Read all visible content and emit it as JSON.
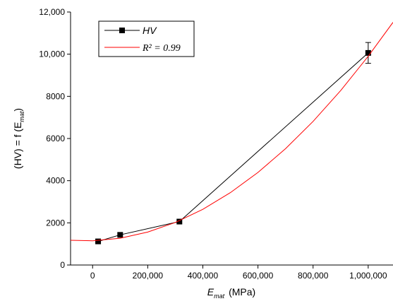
{
  "chart_data": {
    "type": "line",
    "y_label_parts": [
      "(HV) = f (E",
      "mat",
      ")"
    ],
    "x_label_parts": [
      "E",
      "mat",
      "(MPa)"
    ],
    "xlim": [
      -80000,
      1090000
    ],
    "ylim": [
      0,
      12000
    ],
    "xticks": [
      0,
      {
        "value": 200000,
        "label": "200,000"
      },
      {
        "value": 400000,
        "label": "400,000"
      },
      {
        "value": 600000,
        "label": "600,000"
      },
      {
        "value": 800000,
        "label": "800,000"
      },
      {
        "value": 1000000,
        "label": "1,000,000"
      }
    ],
    "yticks": [
      0,
      2000,
      4000,
      6000,
      8000,
      {
        "value": 10000,
        "label": "10,000"
      },
      {
        "value": 12000,
        "label": "12,000"
      }
    ],
    "legend": "upper left",
    "series": [
      {
        "name": "HV",
        "color": "#000000",
        "marker": "square",
        "x": [
          20000,
          100000,
          315000,
          1000000
        ],
        "values": [
          1120,
          1430,
          2060,
          10060
        ],
        "errors": [
          null,
          null,
          null,
          495
        ]
      },
      {
        "name": "R² = 0.99",
        "color": "#ff0000",
        "marker": "none",
        "x": [
          -80000,
          0,
          100000,
          200000,
          300000,
          400000,
          500000,
          600000,
          700000,
          800000,
          900000,
          1000000,
          1090000
        ],
        "values": [
          1173,
          1150,
          1272,
          1561,
          2017,
          2641,
          3433,
          4391,
          5517,
          6811,
          8272,
          9900,
          11509
        ]
      }
    ]
  }
}
